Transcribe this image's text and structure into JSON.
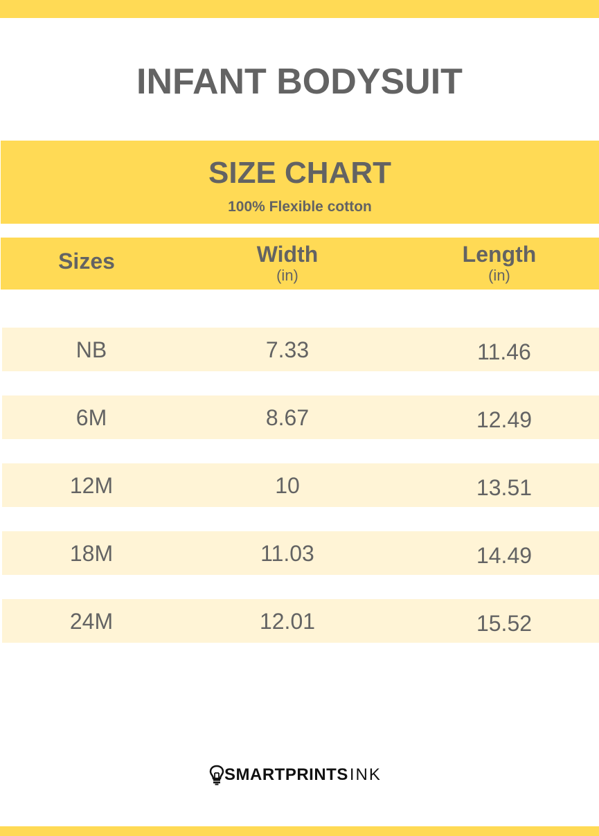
{
  "title": "INFANT BODYSUIT",
  "size_chart": {
    "title": "SIZE CHART",
    "subtitle": "100% Flexible cotton"
  },
  "table": {
    "headers": [
      {
        "label": "Sizes",
        "unit": ""
      },
      {
        "label": "Width",
        "unit": "(in)"
      },
      {
        "label": "Length",
        "unit": "(in)"
      }
    ],
    "rows": [
      [
        "NB",
        "7.33",
        "11.46"
      ],
      [
        "6M",
        "8.67",
        "12.49"
      ],
      [
        "12M",
        "10",
        "13.51"
      ],
      [
        "18M",
        "11.03",
        "14.49"
      ],
      [
        "24M",
        "12.01",
        "15.52"
      ]
    ]
  },
  "logo": {
    "bold": "SMARTPRINTS",
    "light": "INK",
    "icon": "lightbulb-icon"
  },
  "colors": {
    "accent": "#FFDA55",
    "row": "#FFF4D6",
    "text": "#636363"
  }
}
